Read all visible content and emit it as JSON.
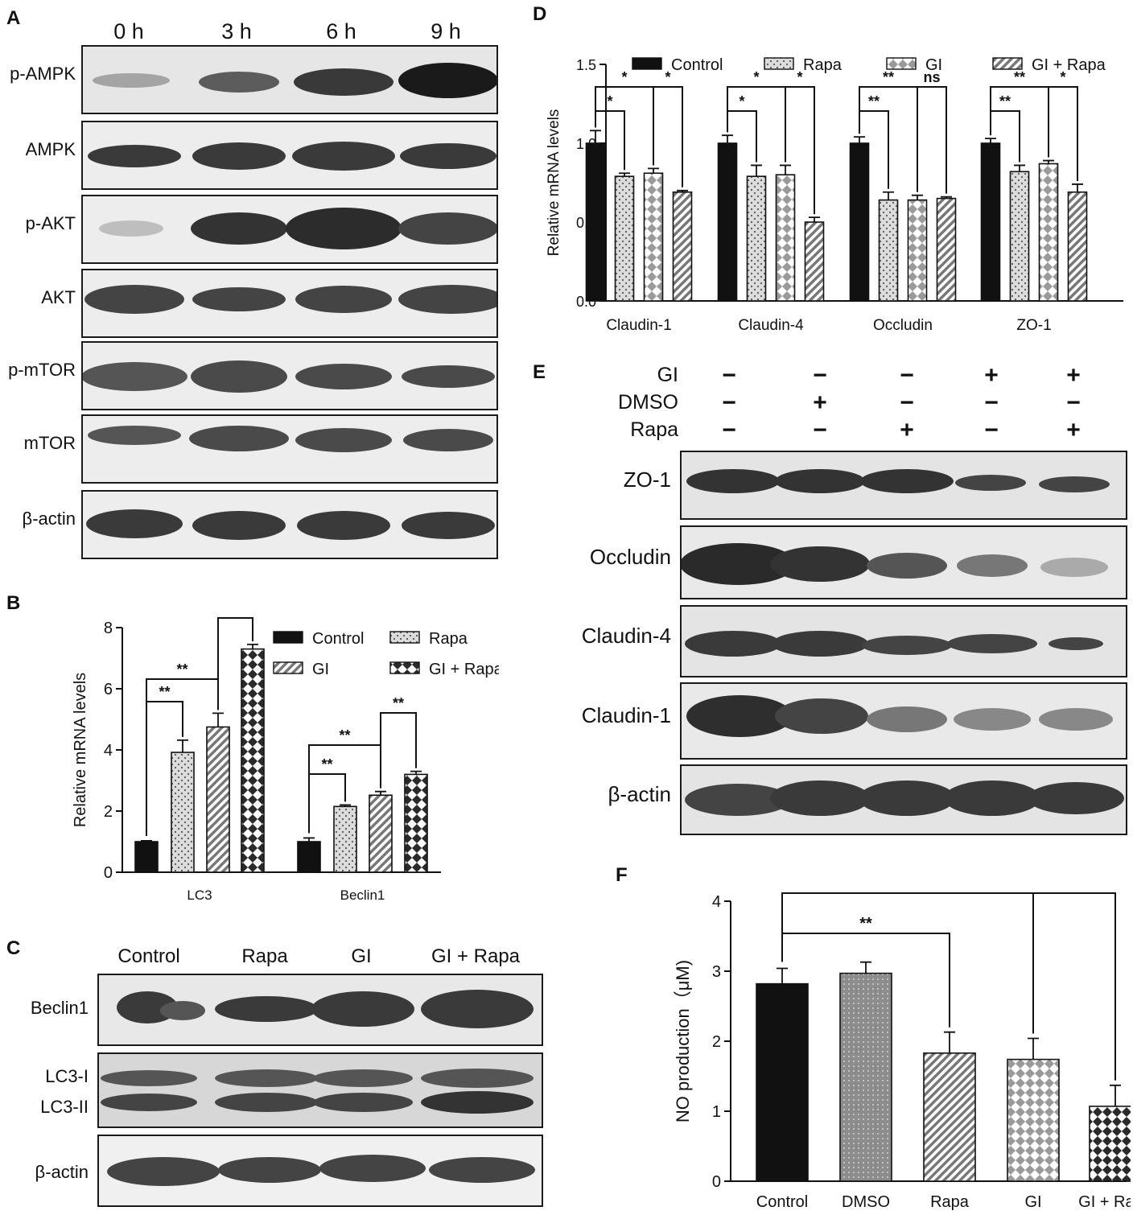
{
  "panels": {
    "A": "A",
    "B": "B",
    "C": "C",
    "D": "D",
    "E": "E",
    "F": "F"
  },
  "panel_A": {
    "times": [
      "0 h",
      "3 h",
      "6 h",
      "9 h"
    ],
    "rows": [
      "p-AMPK",
      "AMPK",
      "p-AKT",
      "AKT",
      "p-mTOR",
      "mTOR",
      "β-actin"
    ]
  },
  "panel_C": {
    "groups": [
      "Control",
      "Rapa",
      "GI",
      "GI + Rapa"
    ],
    "rows": [
      "Beclin1",
      "LC3-I",
      "LC3-II",
      "β-actin"
    ]
  },
  "panel_E": {
    "treatments": [
      {
        "label": "GI",
        "signs": [
          "−",
          "−",
          "−",
          "+",
          "+"
        ]
      },
      {
        "label": "DMSO",
        "signs": [
          "−",
          "+",
          "−",
          "−",
          "−"
        ]
      },
      {
        "label": "Rapa",
        "signs": [
          "−",
          "−",
          "+",
          "−",
          "+"
        ]
      }
    ],
    "rows": [
      "ZO-1",
      "Occludin",
      "Claudin-4",
      "Claudin-1",
      "β-actin"
    ]
  },
  "colors": {
    "control": "#111111",
    "dmso": "#8a8a8a",
    "rapa": "#d9d9d9",
    "gi": "#ececec",
    "gi_rapa": "#333333"
  },
  "chart_data": [
    {
      "panel": "B",
      "type": "bar",
      "categories": [
        "LC3",
        "Beclin1"
      ],
      "series": [
        {
          "name": "Control",
          "values": [
            1.0,
            1.0
          ],
          "errors": [
            0.03,
            0.12
          ],
          "pattern": "solid"
        },
        {
          "name": "Rapa",
          "values": [
            3.92,
            2.15
          ],
          "errors": [
            0.4,
            0.05
          ],
          "pattern": "dots"
        },
        {
          "name": "GI",
          "values": [
            4.75,
            2.52
          ],
          "errors": [
            0.45,
            0.12
          ],
          "pattern": "stripes"
        },
        {
          "name": "GI + Rapa",
          "values": [
            7.3,
            3.2
          ],
          "errors": [
            0.15,
            0.1
          ],
          "pattern": "checks"
        }
      ],
      "ylabel": "Relative mRNA levels",
      "ylim": [
        0,
        8
      ],
      "yticks": [
        0,
        2,
        4,
        6,
        8
      ],
      "legend": "top-right",
      "significance": [
        {
          "category": 0,
          "from": 0,
          "to": 1,
          "label": "**"
        },
        {
          "category": 0,
          "from": 0,
          "to": 2,
          "label": "**"
        },
        {
          "category": 0,
          "from": 2,
          "to": 3,
          "label": "**"
        },
        {
          "category": 1,
          "from": 0,
          "to": 1,
          "label": "**"
        },
        {
          "category": 1,
          "from": 0,
          "to": 2,
          "label": "**"
        },
        {
          "category": 1,
          "from": 2,
          "to": 3,
          "label": "**"
        }
      ]
    },
    {
      "panel": "D",
      "type": "bar",
      "categories": [
        "Claudin-1",
        "Claudin-4",
        "Occludin",
        "ZO-1"
      ],
      "series": [
        {
          "name": "Control",
          "values": [
            1.0,
            1.0,
            1.0,
            1.0
          ],
          "errors": [
            0.08,
            0.05,
            0.04,
            0.03
          ],
          "pattern": "solid"
        },
        {
          "name": "Rapa",
          "values": [
            0.79,
            0.79,
            0.64,
            0.82
          ],
          "errors": [
            0.02,
            0.07,
            0.05,
            0.04
          ],
          "pattern": "dots"
        },
        {
          "name": "GI",
          "values": [
            0.81,
            0.8,
            0.64,
            0.87
          ],
          "errors": [
            0.03,
            0.06,
            0.03,
            0.02
          ],
          "pattern": "diamonds"
        },
        {
          "name": "GI + Rapa",
          "values": [
            0.69,
            0.5,
            0.65,
            0.69
          ],
          "errors": [
            0.01,
            0.03,
            0.01,
            0.05
          ],
          "pattern": "stripes"
        }
      ],
      "ylabel": "Relative mRNA levels",
      "ylim": [
        0,
        1.5
      ],
      "yticks": [
        "0.0",
        "0.5",
        "1.0",
        "1.5"
      ],
      "legend": "top",
      "significance": [
        {
          "category": 0,
          "from": 0,
          "to": 1,
          "label": "*"
        },
        {
          "category": 0,
          "from": 0,
          "to": 2,
          "label": "*"
        },
        {
          "category": 0,
          "from": 2,
          "to": 3,
          "label": "*"
        },
        {
          "category": 1,
          "from": 0,
          "to": 1,
          "label": "*"
        },
        {
          "category": 1,
          "from": 0,
          "to": 2,
          "label": "*"
        },
        {
          "category": 1,
          "from": 2,
          "to": 3,
          "label": "*"
        },
        {
          "category": 2,
          "from": 0,
          "to": 1,
          "label": "**"
        },
        {
          "category": 2,
          "from": 0,
          "to": 2,
          "label": "**"
        },
        {
          "category": 2,
          "from": 2,
          "to": 3,
          "label": "ns"
        },
        {
          "category": 3,
          "from": 0,
          "to": 1,
          "label": "**"
        },
        {
          "category": 3,
          "from": 0,
          "to": 2,
          "label": "**"
        },
        {
          "category": 3,
          "from": 2,
          "to": 3,
          "label": "*"
        }
      ]
    },
    {
      "panel": "F",
      "type": "bar",
      "categories": [
        "Control",
        "DMSO",
        "Rapa",
        "GI",
        "GI + Rapa"
      ],
      "values": [
        2.82,
        2.97,
        1.83,
        1.74,
        1.07
      ],
      "errors": [
        0.22,
        0.16,
        0.3,
        0.3,
        0.3
      ],
      "patterns": [
        "solid",
        "fine-dots",
        "stripes",
        "diamonds",
        "checks"
      ],
      "ylabel": "NO production（μM)",
      "ylim": [
        0,
        4
      ],
      "yticks": [
        0,
        1,
        2,
        3,
        4
      ],
      "significance": [
        {
          "from": 0,
          "to": 3,
          "label": "**"
        },
        {
          "from": 0,
          "to": 2,
          "label": "**"
        },
        {
          "from": 3,
          "to": 4,
          "label": "*"
        }
      ]
    }
  ]
}
